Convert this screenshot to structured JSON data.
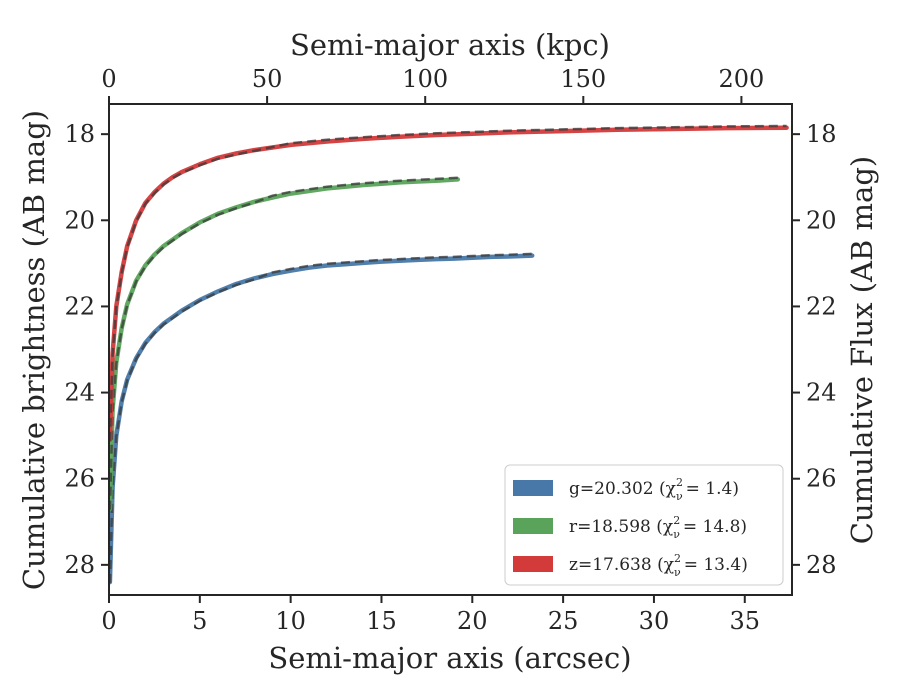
{
  "chart_data": {
    "type": "line",
    "title": "",
    "xlabel": "Semi-major axis (arcsec)",
    "ylabel": "Cumulative brightness (AB mag)",
    "x2label": "Semi-major axis (kpc)",
    "y2label": "Cumulative Flux (AB mag)",
    "xlim": [
      0,
      37.6
    ],
    "ylim": [
      28.7,
      17.3
    ],
    "y_inverted": true,
    "x2lim": [
      0,
      216
    ],
    "xticks": [
      "0",
      "5",
      "10",
      "15",
      "20",
      "25",
      "30",
      "35"
    ],
    "yticks": [
      "18",
      "20",
      "22",
      "24",
      "26",
      "28"
    ],
    "x2ticks": [
      "0",
      "50",
      "100",
      "150",
      "200"
    ],
    "y2ticks": [
      "18",
      "20",
      "22",
      "24",
      "26",
      "28"
    ],
    "grid": false,
    "legend_position": "lower-right",
    "series": [
      {
        "name": "g=20.302",
        "chi_label": "(χ",
        "chi_value": "= 1.4)",
        "color": "#4878a8",
        "x": [
          0.05,
          0.2,
          0.4,
          0.7,
          1.0,
          1.5,
          2.0,
          2.5,
          3.0,
          3.5,
          4.0,
          5.0,
          6.0,
          7.0,
          8.0,
          9.0,
          10.0,
          11.0,
          12.0,
          13.0,
          14.0,
          15.0,
          16.0,
          17.0,
          18.0,
          19.0,
          20.0,
          21.0,
          22.0,
          23.3
        ],
        "y": [
          28.4,
          26.2,
          25.0,
          24.2,
          23.7,
          23.2,
          22.85,
          22.6,
          22.4,
          22.25,
          22.1,
          21.85,
          21.65,
          21.48,
          21.35,
          21.25,
          21.17,
          21.1,
          21.05,
          21.02,
          20.99,
          20.96,
          20.94,
          20.92,
          20.9,
          20.89,
          20.87,
          20.85,
          20.84,
          20.82
        ]
      },
      {
        "name": "r=18.598",
        "chi_label": "(χ",
        "chi_value": "= 14.8)",
        "color": "#5aa35a",
        "x": [
          0.05,
          0.2,
          0.4,
          0.7,
          1.0,
          1.5,
          2.0,
          2.5,
          3.0,
          3.5,
          4.0,
          5.0,
          6.0,
          7.0,
          8.0,
          9.0,
          10.0,
          11.0,
          12.0,
          13.0,
          14.0,
          15.0,
          16.0,
          17.0,
          18.0,
          19.2
        ],
        "y": [
          26.7,
          24.4,
          23.3,
          22.5,
          21.95,
          21.4,
          21.05,
          20.8,
          20.6,
          20.45,
          20.3,
          20.05,
          19.85,
          19.7,
          19.57,
          19.47,
          19.38,
          19.32,
          19.26,
          19.22,
          19.18,
          19.15,
          19.12,
          19.1,
          19.08,
          19.05
        ]
      },
      {
        "name": "z=17.638",
        "chi_label": "(χ",
        "chi_value": "= 13.4)",
        "color": "#d33a3a",
        "x": [
          0.05,
          0.2,
          0.4,
          0.7,
          1.0,
          1.5,
          2.0,
          2.5,
          3.0,
          3.5,
          4.0,
          5.0,
          6.0,
          7.0,
          8.0,
          10.0,
          12.0,
          14.0,
          16.0,
          18.0,
          20.0,
          22.0,
          25.0,
          28.0,
          31.0,
          34.0,
          37.3
        ],
        "y": [
          25.1,
          23.1,
          22.0,
          21.2,
          20.6,
          20.0,
          19.6,
          19.35,
          19.15,
          19.0,
          18.88,
          18.7,
          18.55,
          18.45,
          18.37,
          18.25,
          18.17,
          18.11,
          18.06,
          18.02,
          17.99,
          17.96,
          17.93,
          17.9,
          17.88,
          17.86,
          17.85
        ]
      }
    ],
    "model_lines": {
      "style": "dashed",
      "color": "#3a3a3a"
    }
  }
}
